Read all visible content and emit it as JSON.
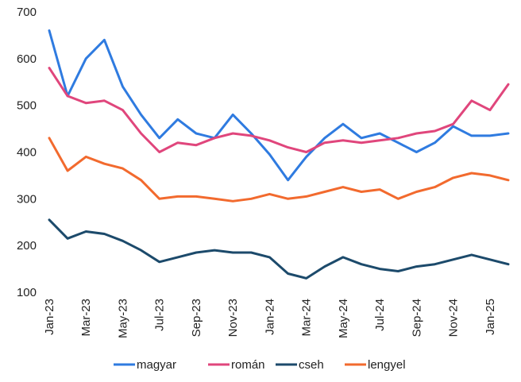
{
  "chart_data": {
    "type": "line",
    "title": "",
    "xlabel": "",
    "ylabel": "",
    "ylim": [
      100,
      700
    ],
    "yticks": [
      100,
      200,
      300,
      400,
      500,
      600,
      700
    ],
    "xticks": [
      "Jan-23",
      "Mar-23",
      "May-23",
      "Jul-23",
      "Sep-23",
      "Nov-23",
      "Jan-24",
      "Mar-24",
      "May-24",
      "Jul-24",
      "Sep-24",
      "Nov-24",
      "Jan-25"
    ],
    "grid": false,
    "legend_position": "bottom",
    "x": [
      "Jan-23",
      "Feb-23",
      "Mar-23",
      "Apr-23",
      "May-23",
      "Jun-23",
      "Jul-23",
      "Aug-23",
      "Sep-23",
      "Oct-23",
      "Nov-23",
      "Dec-23",
      "Jan-24",
      "Feb-24",
      "Mar-24",
      "Apr-24",
      "May-24",
      "Jun-24",
      "Jul-24",
      "Aug-24",
      "Sep-24",
      "Oct-24",
      "Nov-24",
      "Dec-24",
      "Jan-25",
      "Feb-25"
    ],
    "series": [
      {
        "name": "magyar",
        "color": "#2f7be0",
        "values": [
          660,
          520,
          600,
          640,
          540,
          480,
          430,
          470,
          440,
          430,
          480,
          440,
          395,
          340,
          390,
          430,
          460,
          430,
          440,
          420,
          400,
          420,
          455,
          435,
          435,
          440
        ]
      },
      {
        "name": "román",
        "color": "#e0467c",
        "values": [
          580,
          520,
          505,
          510,
          490,
          440,
          400,
          420,
          415,
          430,
          440,
          435,
          425,
          410,
          400,
          420,
          425,
          420,
          425,
          430,
          440,
          445,
          460,
          510,
          490,
          545
        ]
      },
      {
        "name": "cseh",
        "color": "#1c4a6b",
        "values": [
          255,
          215,
          230,
          225,
          210,
          190,
          165,
          175,
          185,
          190,
          185,
          185,
          175,
          140,
          130,
          155,
          175,
          160,
          150,
          145,
          155,
          160,
          170,
          180,
          170,
          160
        ]
      },
      {
        "name": "lengyel",
        "color": "#f26a2e",
        "values": [
          430,
          360,
          390,
          375,
          365,
          340,
          300,
          305,
          305,
          300,
          295,
          300,
          310,
          300,
          305,
          315,
          325,
          315,
          320,
          300,
          315,
          325,
          345,
          355,
          350,
          340
        ]
      }
    ]
  }
}
